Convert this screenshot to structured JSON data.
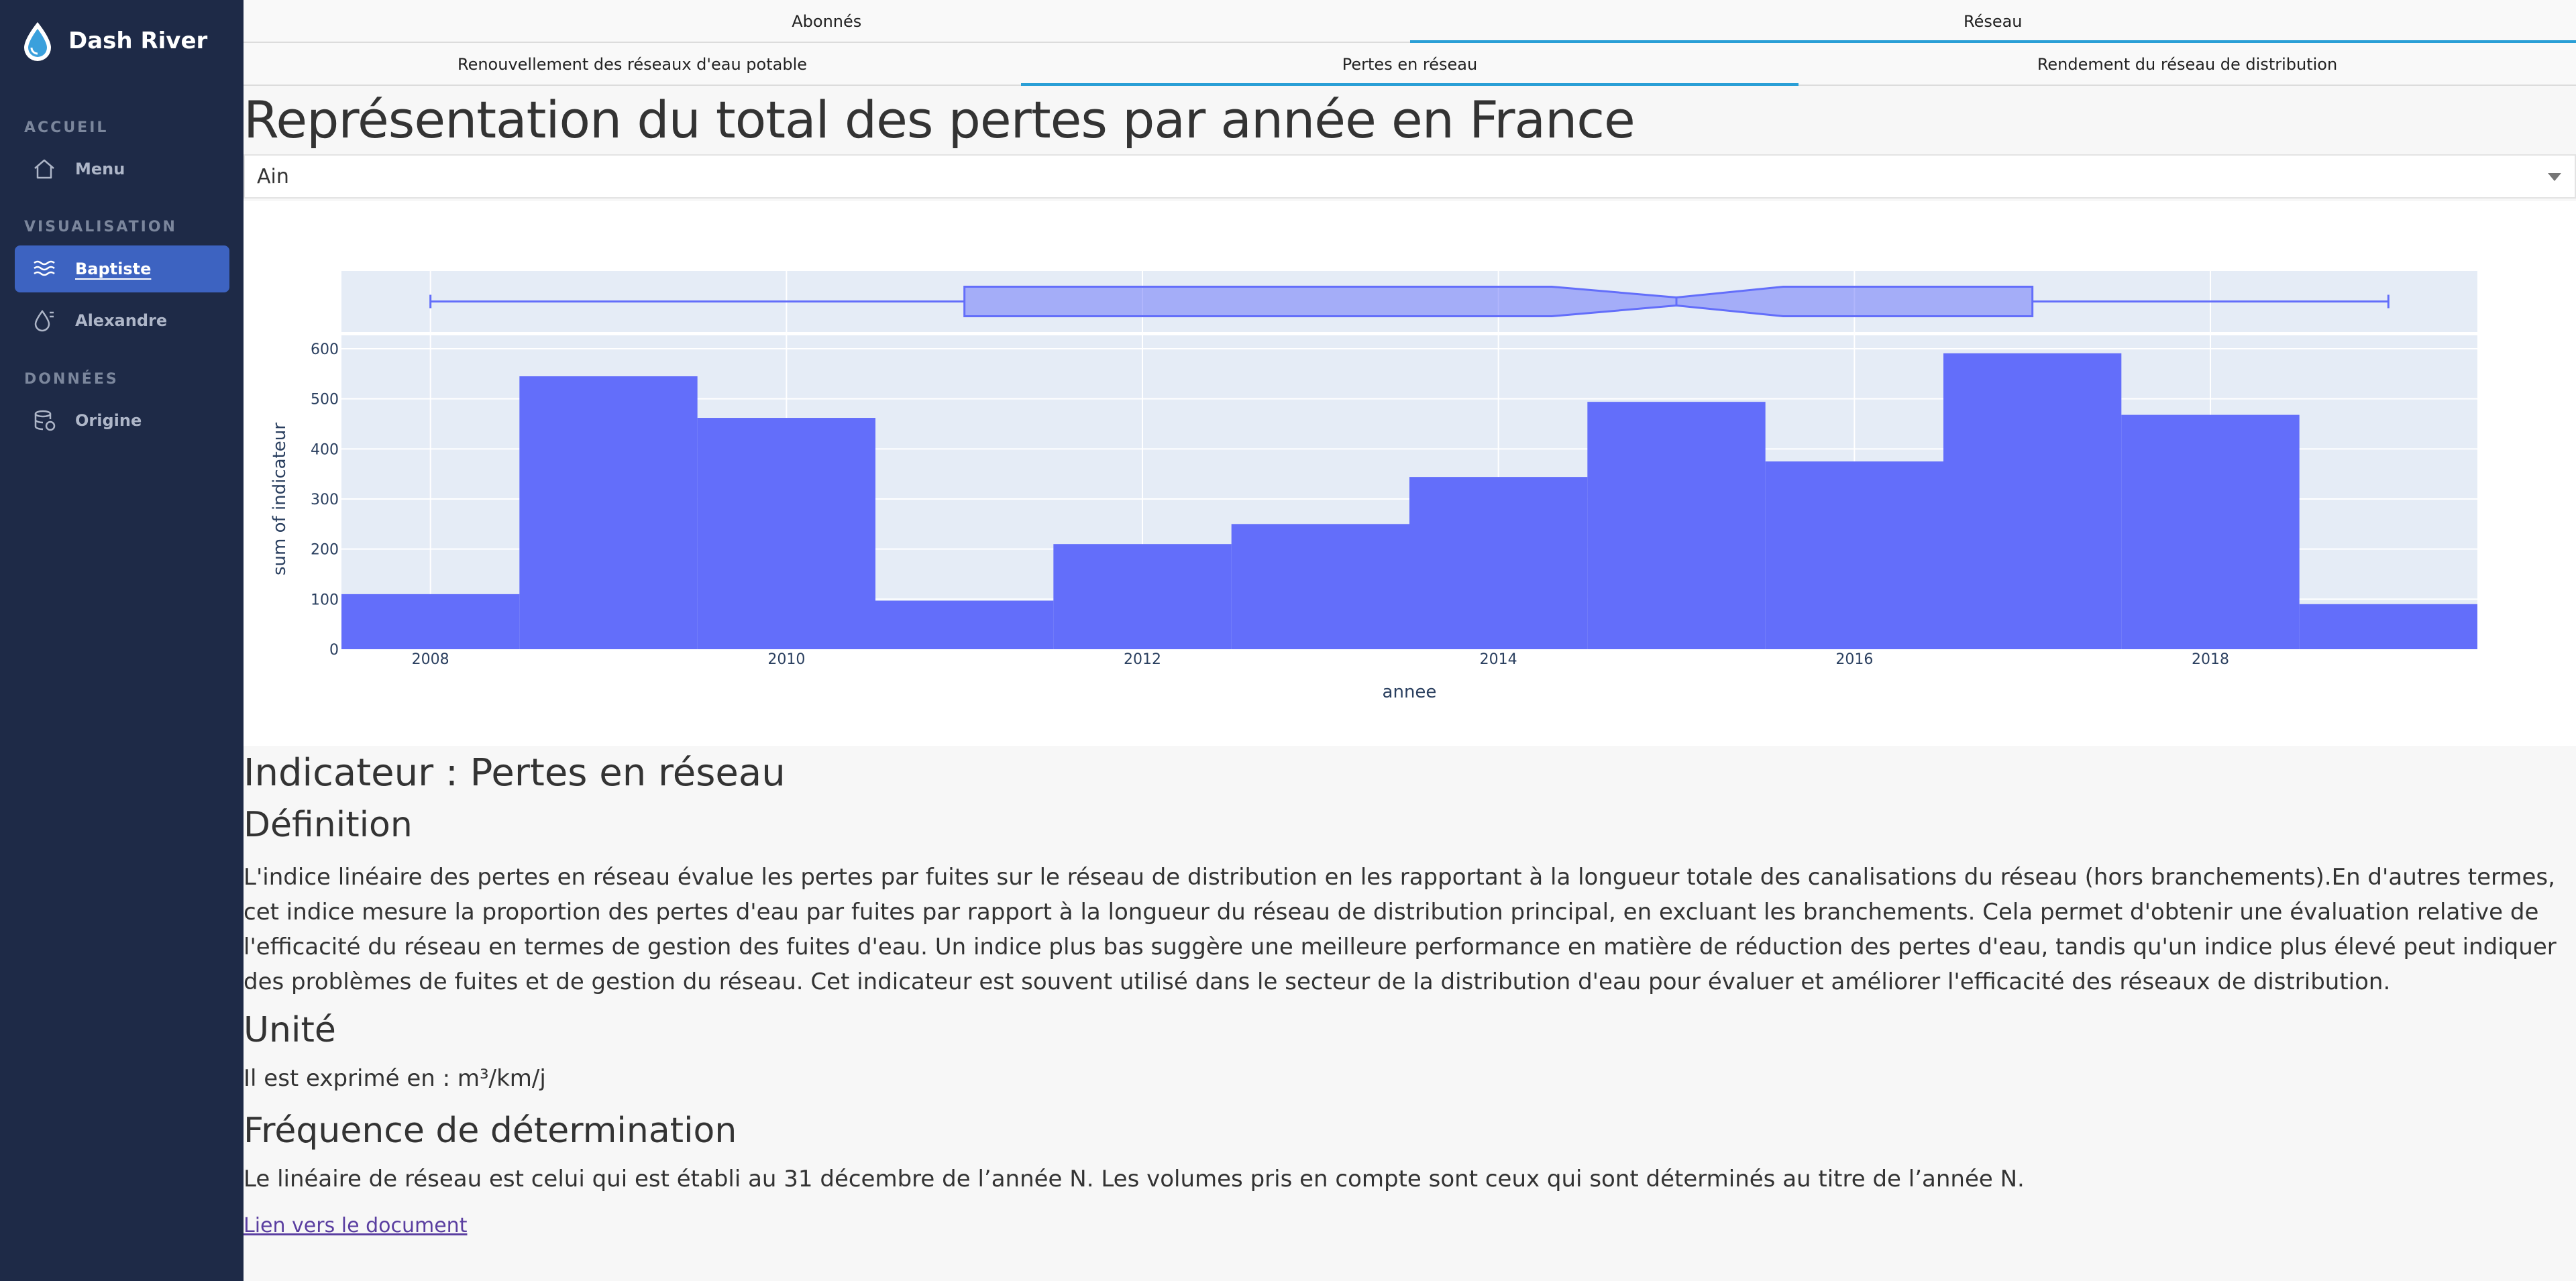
{
  "app": {
    "title": "Dash River"
  },
  "sidebar": {
    "sections": [
      {
        "label": "ACCUEIL"
      },
      {
        "label": "VISUALISATION"
      },
      {
        "label": "DONNÉES"
      }
    ],
    "items": [
      {
        "label": "Menu",
        "icon": "home-icon"
      },
      {
        "label": "Baptiste",
        "icon": "waves-icon",
        "active": true
      },
      {
        "label": "Alexandre",
        "icon": "water-drop-icon"
      },
      {
        "label": "Origine",
        "icon": "database-icon"
      }
    ]
  },
  "tabs_top": [
    {
      "label": "Abonnés",
      "active": false
    },
    {
      "label": "Réseau",
      "active": true
    }
  ],
  "tabs_sub": [
    {
      "label": "Renouvellement des réseaux d'eau potable",
      "active": false
    },
    {
      "label": "Pertes en réseau",
      "active": true
    },
    {
      "label": "Rendement du réseau de distribution",
      "active": false
    }
  ],
  "main": {
    "title": "Représentation du total des pertes par année en France",
    "dropdown_value": "Ain"
  },
  "colors": {
    "bar": "#636efa",
    "plot_bg": "#e5ecf6",
    "accent": "#2a9fd6",
    "sidebar": "#1e2a47",
    "active_item": "#3d63c1"
  },
  "chart_data": {
    "type": "bar",
    "xlabel": "annee",
    "ylabel": "sum of indicateur",
    "ylim": [
      0,
      600
    ],
    "x_ticks": [
      "2008",
      "2010",
      "2012",
      "2014",
      "2016",
      "2018"
    ],
    "y_ticks": [
      "0",
      "100",
      "200",
      "300",
      "400",
      "500",
      "600"
    ],
    "categories": [
      2008,
      2009,
      2010,
      2011,
      2012,
      2013,
      2014,
      2015,
      2016,
      2017,
      2018,
      2019
    ],
    "values": [
      110,
      545,
      462,
      97,
      210,
      250,
      344,
      494,
      375,
      591,
      468,
      90
    ],
    "marginal_box": {
      "min": 2008,
      "q1": 2011,
      "median": 2015,
      "q3": 2017,
      "max": 2019.0,
      "notch_low": 2014.3,
      "notch_high": 2015.6
    }
  },
  "indicator": {
    "title": "Indicateur : Pertes en réseau",
    "definition_heading": "Définition",
    "definition": "L'indice linéaire des pertes en réseau évalue les pertes par fuites sur le réseau de distribution en les rapportant à la longueur totale des canalisations du réseau (hors branchements).En d'autres termes, cet indice mesure la proportion des pertes d'eau par fuites par rapport à la longueur du réseau de distribution principal, en excluant les branchements. Cela permet d'obtenir une évaluation relative de l'efficacité du réseau en termes de gestion des fuites d'eau. Un indice plus bas suggère une meilleure performance en matière de réduction des pertes d'eau, tandis qu'un indice plus élevé peut indiquer des problèmes de fuites et de gestion du réseau. Cet indicateur est souvent utilisé dans le secteur de la distribution d'eau pour évaluer et améliorer l'efficacité des réseaux de distribution.",
    "unit_heading": "Unité",
    "unit_text": "Il est exprimé en : m³/km/j",
    "frequency_heading": "Fréquence de détermination",
    "frequency_text": "Le linéaire de réseau est celui qui est établi au 31 décembre de l’année N. Les volumes pris en compte sont ceux qui sont déterminés au titre de l’année N.",
    "link_text": "Lien vers le document"
  }
}
